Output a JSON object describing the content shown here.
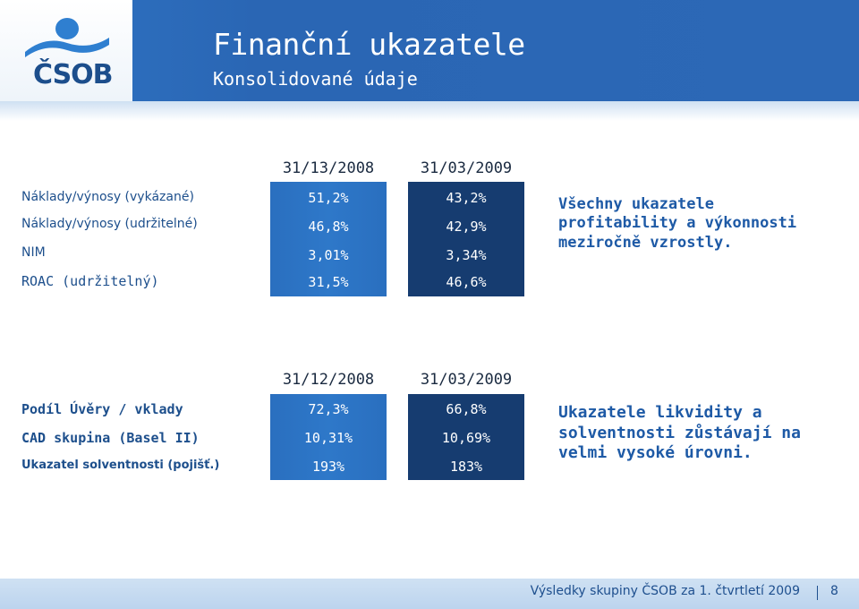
{
  "header": {
    "title": "Finanční ukazatele",
    "subtitle": "Konsolidované údaje",
    "logo_text": "ČSOB"
  },
  "table1": {
    "col1_header": "31/13/2008",
    "col2_header": "31/03/2009",
    "rows": [
      {
        "label": "Náklady/výnosy (vykázané)",
        "v1": "51,2%",
        "v2": "43,2%"
      },
      {
        "label": "Náklady/výnosy (udržitelné)",
        "v1": "46,8%",
        "v2": "42,9%"
      },
      {
        "label": "NIM",
        "v1": "3,01%",
        "v2": "3,34%"
      },
      {
        "label": "ROAC (udržitelný)",
        "v1": "31,5%",
        "v2": "46,6%"
      }
    ],
    "note_lines": [
      "Všechny ukazatele",
      "profitability a výkonnosti",
      "meziročně vzrostly."
    ]
  },
  "table2": {
    "col1_header": "31/12/2008",
    "col2_header": "31/03/2009",
    "rows": [
      {
        "label": "Podíl Úvěry / vklady",
        "v1": "72,3%",
        "v2": "66,8%"
      },
      {
        "label": "CAD skupina (Basel II)",
        "v1": "10,31%",
        "v2": "10,69%"
      },
      {
        "label": "Ukazatel solventnosti (pojišť.)",
        "v1": "193%",
        "v2": "183%"
      }
    ],
    "note_lines": [
      "Ukazatele likvidity a",
      "solventnosti zůstávají na",
      "velmi vysoké úrovni."
    ]
  },
  "footer": {
    "text": "Výsledky skupiny ČSOB za 1. čtvrtletí 2009",
    "page_number": "8"
  },
  "colors": {
    "header_blue": "#2a66b4",
    "column_light": "#2e78c9",
    "column_dark": "#163c70",
    "text_blue": "#1e5aa6"
  }
}
